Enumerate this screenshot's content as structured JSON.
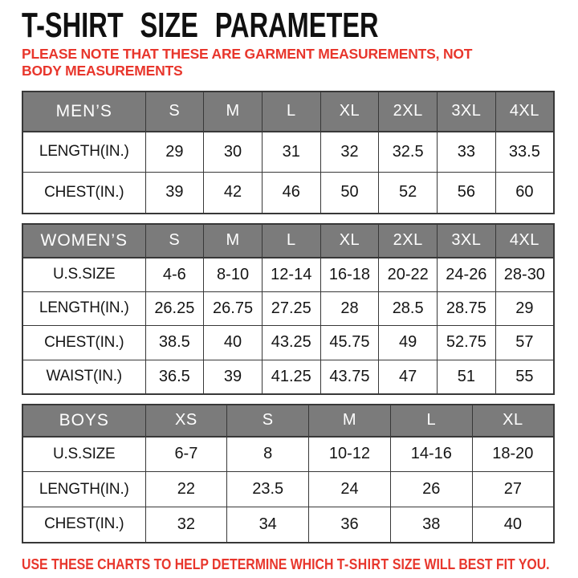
{
  "page": {
    "title": "T-SHIRT SIZE PARAMETER",
    "note": "PLEASE NOTE THAT THESE ARE GARMENT MEASUREMENTS, NOT BODY MEASUREMENTS",
    "footer": {
      "prefix": "USE THESE CHARTS TO HELP DETERMINE WHICH ",
      "emphasis": "T-SHIRT",
      "suffix": " SIZE WILL BEST FIT YOU."
    }
  },
  "colors": {
    "accent_red": "#e8362c",
    "header_gray": "#7b7b7b",
    "header_text": "#ffffff",
    "border_dark": "#383838",
    "body_text": "#151515"
  },
  "tables": [
    {
      "name": "MEN’S",
      "columns": [
        "S",
        "M",
        "L",
        "XL",
        "2XL",
        "3XL",
        "4XL"
      ],
      "rows": [
        {
          "label": "LENGTH(IN.)",
          "values": [
            "29",
            "30",
            "31",
            "32",
            "32.5",
            "33",
            "33.5"
          ]
        },
        {
          "label": "CHEST(IN.)",
          "values": [
            "39",
            "42",
            "46",
            "50",
            "52",
            "56",
            "60"
          ]
        }
      ]
    },
    {
      "name": "WOMEN’S",
      "columns": [
        "S",
        "M",
        "L",
        "XL",
        "2XL",
        "3XL",
        "4XL"
      ],
      "rows": [
        {
          "label": "U.S.SIZE",
          "values": [
            "4-6",
            "8-10",
            "12-14",
            "16-18",
            "20-22",
            "24-26",
            "28-30"
          ]
        },
        {
          "label": "LENGTH(IN.)",
          "values": [
            "26.25",
            "26.75",
            "27.25",
            "28",
            "28.5",
            "28.75",
            "29"
          ]
        },
        {
          "label": "CHEST(IN.)",
          "values": [
            "38.5",
            "40",
            "43.25",
            "45.75",
            "49",
            "52.75",
            "57"
          ]
        },
        {
          "label": "WAIST(IN.)",
          "values": [
            "36.5",
            "39",
            "41.25",
            "43.75",
            "47",
            "51",
            "55"
          ]
        }
      ]
    },
    {
      "name": "BOYS",
      "columns": [
        "XS",
        "S",
        "M",
        "L",
        "XL"
      ],
      "rows": [
        {
          "label": "U.S.SIZE",
          "values": [
            "6-7",
            "8",
            "10-12",
            "14-16",
            "18-20"
          ]
        },
        {
          "label": "LENGTH(IN.)",
          "values": [
            "22",
            "23.5",
            "24",
            "26",
            "27"
          ]
        },
        {
          "label": "CHEST(IN.)",
          "values": [
            "32",
            "34",
            "36",
            "38",
            "40"
          ]
        }
      ]
    }
  ]
}
